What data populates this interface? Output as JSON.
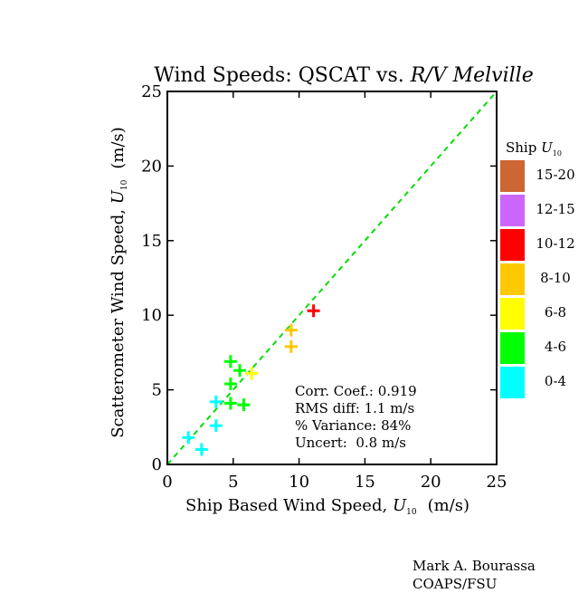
{
  "chart_data": {
    "type": "scatter",
    "title_prefix": "Wind Speeds: QSCAT vs. ",
    "title_italic": "R/V Melville",
    "xlabel": "Ship Based Wind Speed,",
    "ylabel": "Scatterometer Wind Speed,",
    "variable": "U",
    "variable_subscript": "10",
    "unit": "(m/s)",
    "xlim": [
      0,
      25
    ],
    "ylim": [
      0,
      25
    ],
    "xticks": [
      "0",
      "5",
      "10",
      "15",
      "20",
      "25"
    ],
    "yticks": [
      "0",
      "5",
      "10",
      "15",
      "20",
      "25"
    ],
    "reference_line": {
      "type": "1:1",
      "color": "#00dd00",
      "style": "dashed"
    },
    "points": [
      {
        "x": 1.6,
        "y": 1.8,
        "bin": "0-4"
      },
      {
        "x": 2.6,
        "y": 1.0,
        "bin": "0-4"
      },
      {
        "x": 3.7,
        "y": 2.6,
        "bin": "0-4"
      },
      {
        "x": 3.7,
        "y": 4.2,
        "bin": "0-4"
      },
      {
        "x": 4.8,
        "y": 6.9,
        "bin": "4-6"
      },
      {
        "x": 5.5,
        "y": 6.3,
        "bin": "4-6"
      },
      {
        "x": 4.8,
        "y": 5.4,
        "bin": "4-6"
      },
      {
        "x": 4.8,
        "y": 4.1,
        "bin": "4-6"
      },
      {
        "x": 5.8,
        "y": 4.0,
        "bin": "4-6"
      },
      {
        "x": 6.4,
        "y": 6.1,
        "bin": "6-8"
      },
      {
        "x": 9.4,
        "y": 9.0,
        "bin": "8-10"
      },
      {
        "x": 9.4,
        "y": 7.9,
        "bin": "8-10"
      },
      {
        "x": 11.1,
        "y": 10.3,
        "bin": "10-12"
      }
    ],
    "legend": {
      "title": "Ship",
      "placement": "right",
      "entries": [
        {
          "label": "15-20",
          "color": "#cc6633"
        },
        {
          "label": "12-15",
          "color": "#cc66ff"
        },
        {
          "label": "10-12",
          "color": "#ff0000"
        },
        {
          "label": "8-10",
          "color": "#ffc800"
        },
        {
          "label": "6-8",
          "color": "#ffff00"
        },
        {
          "label": "4-6",
          "color": "#00ff00"
        },
        {
          "label": "0-4",
          "color": "#00ffff"
        }
      ]
    },
    "stats": [
      "Corr. Coef.: 0.919",
      "RMS diff: 1.1 m/s",
      "% Variance: 84%",
      "Uncert:  0.8 m/s"
    ]
  },
  "credit": {
    "author": "Mark A. Bourassa",
    "affiliation": "COAPS/FSU"
  }
}
